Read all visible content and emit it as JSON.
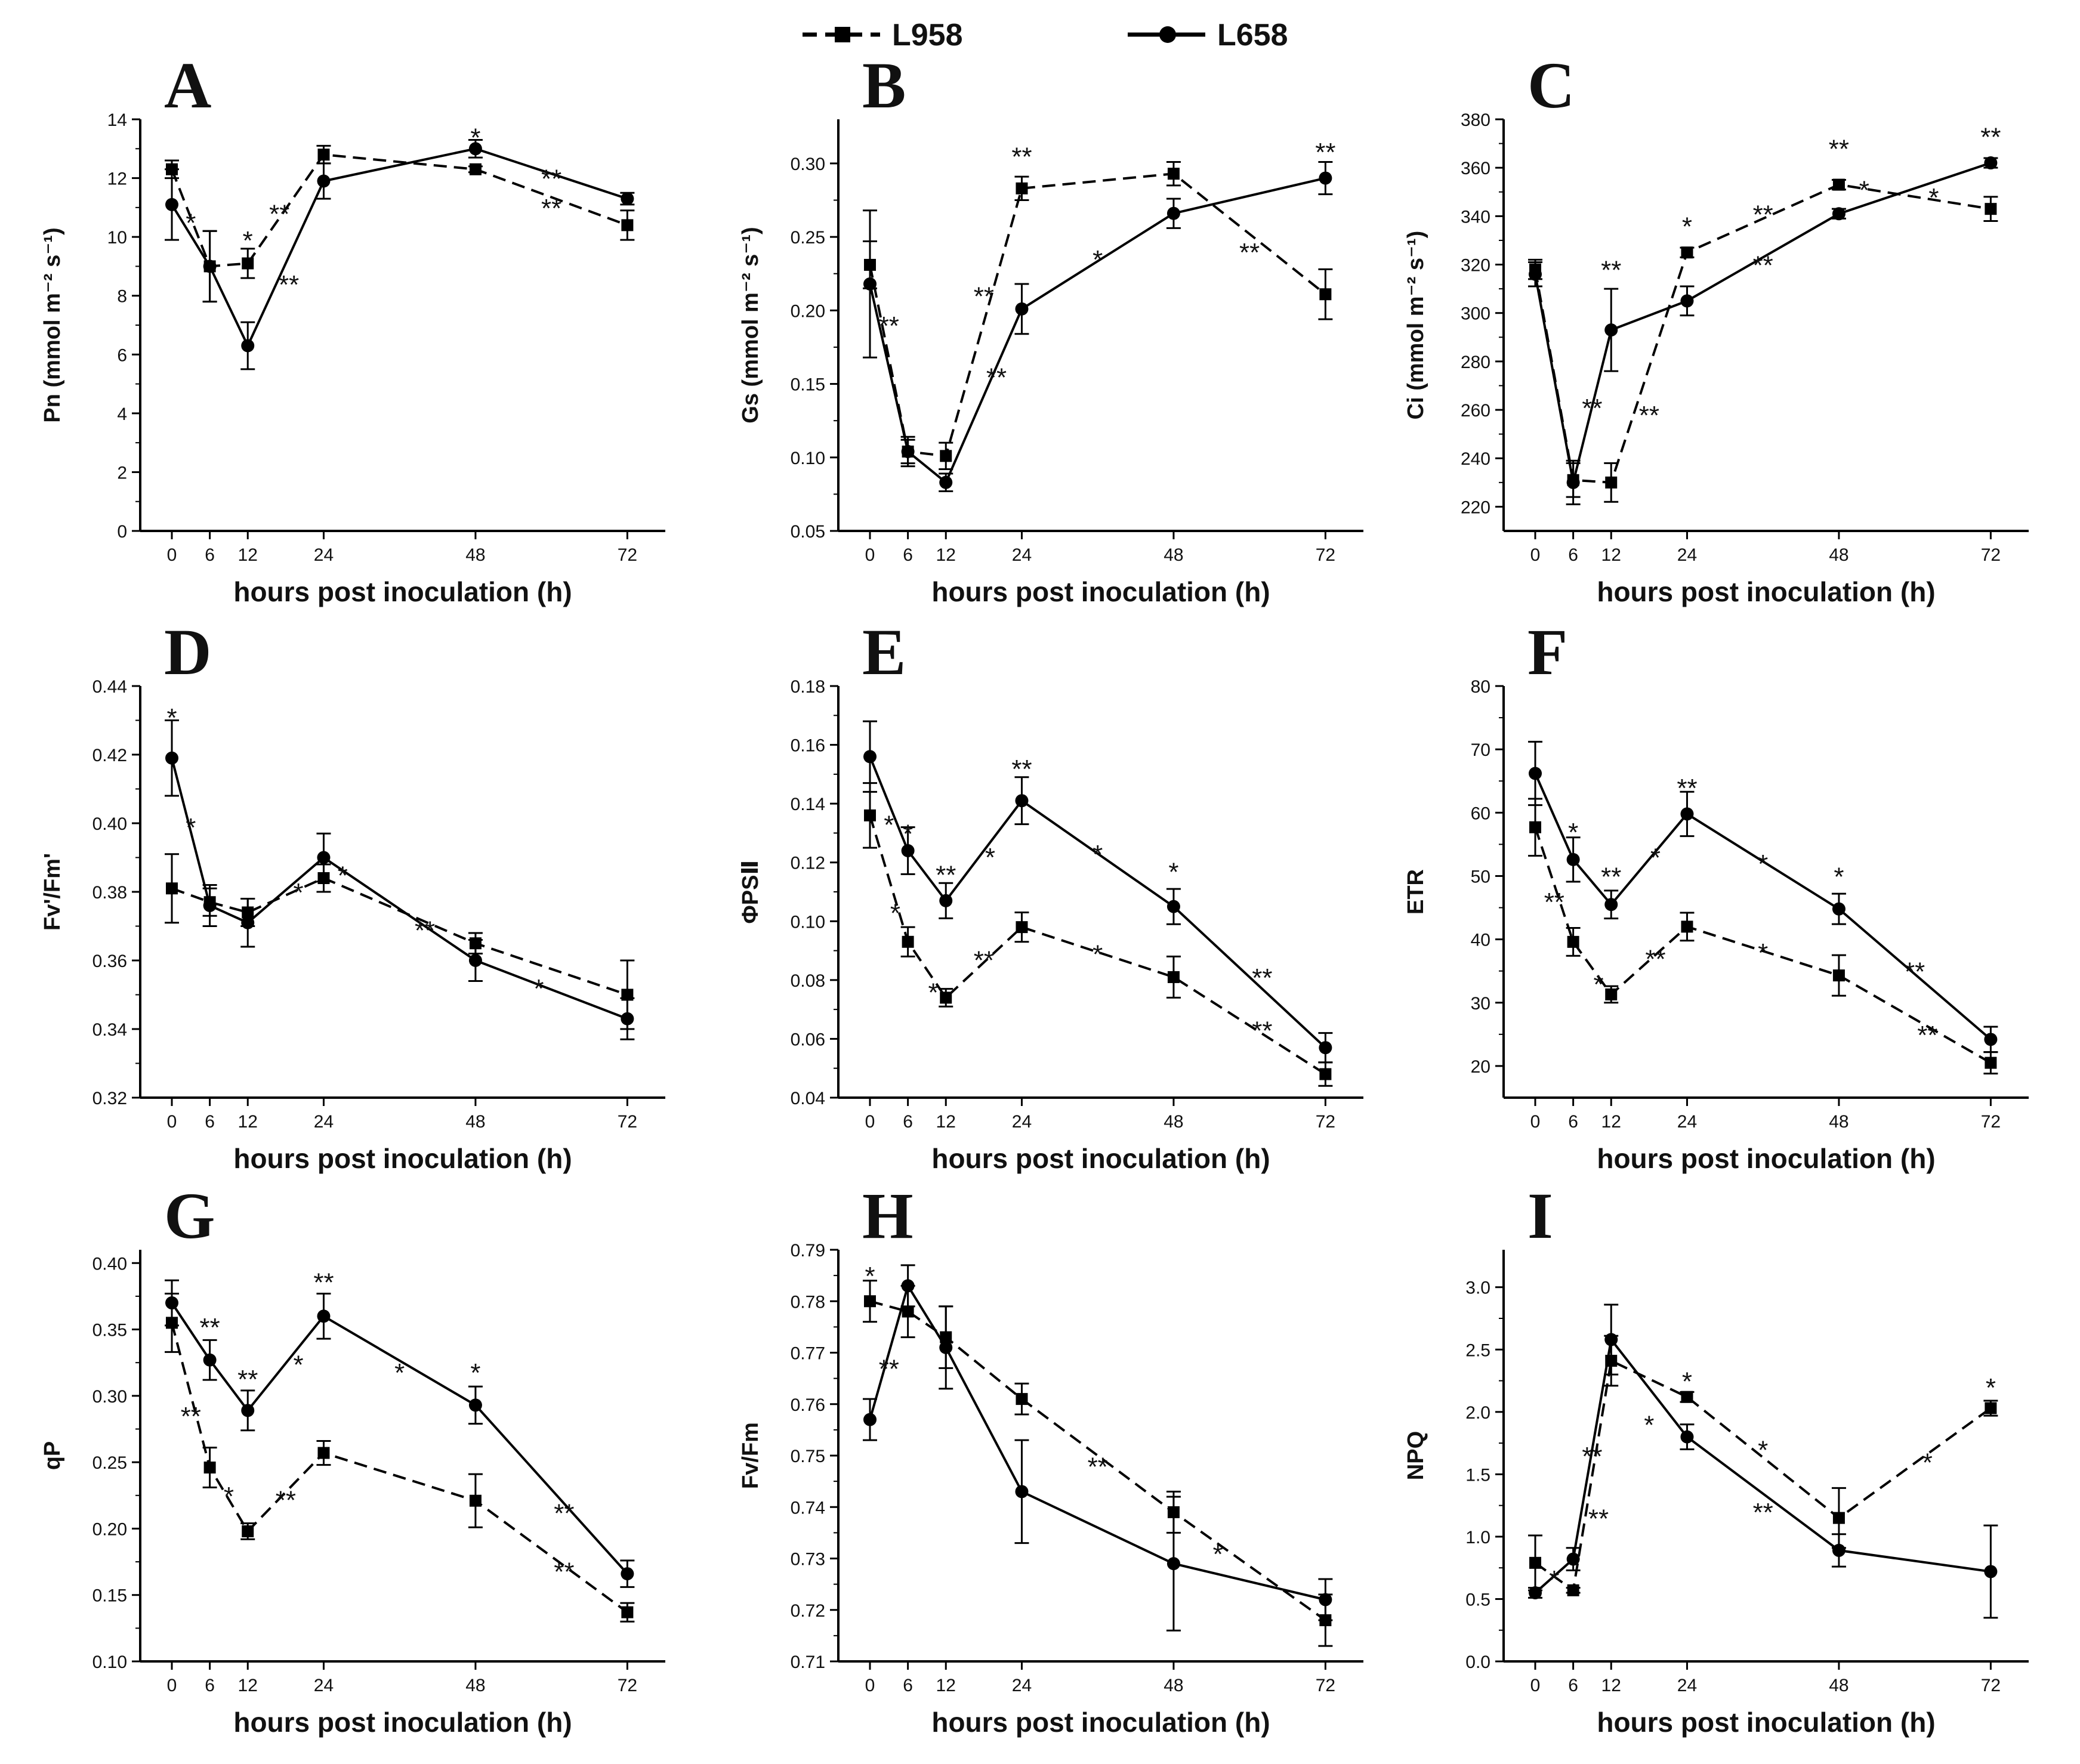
{
  "legend": [
    {
      "name": "L958",
      "style": "dashed",
      "marker": "square"
    },
    {
      "name": "L658",
      "style": "solid",
      "marker": "circle"
    }
  ],
  "chart_data": [
    {
      "type": "line",
      "panel": "A",
      "xlabel": "hours post  inoculation (h)",
      "ylabel": "Pn (mmol m⁻² s⁻¹)",
      "x": [
        0,
        6,
        12,
        24,
        48,
        72
      ],
      "xticks": [
        "0",
        "6",
        "12",
        "24",
        "48",
        "72"
      ],
      "ylim": [
        0,
        14
      ],
      "yticks": [
        "0",
        "2",
        "4",
        "6",
        "8",
        "10",
        "12",
        "14"
      ],
      "series": [
        {
          "name": "L958",
          "values": [
            12.3,
            9.0,
            9.1,
            12.8,
            12.3,
            10.4
          ],
          "errors": [
            0.3,
            1.2,
            0.5,
            0.3,
            0.1,
            0.5
          ]
        },
        {
          "name": "L658",
          "values": [
            11.1,
            9.0,
            6.3,
            11.9,
            13.0,
            11.3
          ],
          "errors": [
            1.2,
            1.2,
            0.8,
            0.6,
            0.3,
            0.2
          ]
        }
      ],
      "annotations": [
        {
          "text": "*",
          "x": 3,
          "y": 10.5
        },
        {
          "text": "*",
          "x": 12,
          "y": 9.9
        },
        {
          "text": "**",
          "x": 17,
          "y": 10.8
        },
        {
          "text": "**",
          "x": 18.5,
          "y": 8.4
        },
        {
          "text": "*",
          "x": 48,
          "y": 13.4
        },
        {
          "text": "**",
          "x": 60,
          "y": 12.0
        },
        {
          "text": "**",
          "x": 60,
          "y": 11.0
        }
      ]
    },
    {
      "type": "line",
      "panel": "B",
      "xlabel": "hours post  inoculation (h)",
      "ylabel": "Gs (mmol m⁻² s⁻¹)",
      "x": [
        0,
        6,
        12,
        24,
        48,
        72
      ],
      "xticks": [
        "0",
        "6",
        "12",
        "24",
        "48",
        "72"
      ],
      "ylim": [
        0.05,
        0.33
      ],
      "yticks": [
        "0.05",
        "0.10",
        "0.15",
        "0.20",
        "0.25",
        "0.30"
      ],
      "series": [
        {
          "name": "L958",
          "values": [
            0.231,
            0.104,
            0.101,
            0.283,
            0.293,
            0.211
          ],
          "errors": [
            0.016,
            0.008,
            0.009,
            0.008,
            0.008,
            0.017
          ]
        },
        {
          "name": "L658",
          "values": [
            0.218,
            0.104,
            0.083,
            0.201,
            0.266,
            0.29
          ],
          "errors": [
            0.05,
            0.01,
            0.006,
            0.017,
            0.01,
            0.011
          ]
        }
      ],
      "annotations": [
        {
          "text": "**",
          "x": 3,
          "y": 0.19
        },
        {
          "text": "**",
          "x": 24,
          "y": 0.305
        },
        {
          "text": "**",
          "x": 72,
          "y": 0.308
        },
        {
          "text": "**",
          "x": 18,
          "y": 0.21
        },
        {
          "text": "**",
          "x": 20,
          "y": 0.155
        },
        {
          "text": "*",
          "x": 36,
          "y": 0.235
        },
        {
          "text": "**",
          "x": 60,
          "y": 0.24
        }
      ]
    },
    {
      "type": "line",
      "panel": "C",
      "xlabel": "hours post  inoculation (h)",
      "ylabel": "Ci (mmol m⁻² s⁻¹)",
      "x": [
        0,
        6,
        12,
        24,
        48,
        72
      ],
      "xticks": [
        "0",
        "6",
        "12",
        "24",
        "48",
        "72"
      ],
      "ylim": [
        210,
        380
      ],
      "yticks": [
        "220",
        "240",
        "260",
        "280",
        "300",
        "320",
        "340",
        "360",
        "380"
      ],
      "series": [
        {
          "name": "L958",
          "values": [
            318,
            231,
            230,
            325,
            353,
            343
          ],
          "errors": [
            4,
            7,
            8,
            2,
            2,
            5
          ]
        },
        {
          "name": "L658",
          "values": [
            316,
            230,
            293,
            305,
            341,
            362
          ],
          "errors": [
            5,
            9,
            17,
            6,
            2,
            2
          ]
        }
      ],
      "annotations": [
        {
          "text": "*",
          "x": 24,
          "y": 336
        },
        {
          "text": "**",
          "x": 12,
          "y": 318
        },
        {
          "text": "**",
          "x": 48,
          "y": 368
        },
        {
          "text": "**",
          "x": 72,
          "y": 373
        },
        {
          "text": "**",
          "x": 9,
          "y": 261
        },
        {
          "text": "**",
          "x": 18,
          "y": 258
        },
        {
          "text": "**",
          "x": 36,
          "y": 341
        },
        {
          "text": "**",
          "x": 36,
          "y": 320
        },
        {
          "text": "*",
          "x": 52,
          "y": 351
        },
        {
          "text": "*",
          "x": 63,
          "y": 348
        }
      ]
    },
    {
      "type": "line",
      "panel": "D",
      "xlabel": "hours post  inoculation (h)",
      "ylabel": "Fv'/Fm'",
      "x": [
        0,
        6,
        12,
        24,
        48,
        72
      ],
      "xticks": [
        "0",
        "6",
        "12",
        "24",
        "48",
        "72"
      ],
      "ylim": [
        0.32,
        0.44
      ],
      "yticks": [
        "0.32",
        "0.34",
        "0.36",
        "0.38",
        "0.40",
        "0.42",
        "0.44"
      ],
      "series": [
        {
          "name": "L958",
          "values": [
            0.381,
            0.377,
            0.374,
            0.384,
            0.365,
            0.35
          ],
          "errors": [
            0.01,
            0.004,
            0.004,
            0.004,
            0.003,
            0.01
          ]
        },
        {
          "name": "L658",
          "values": [
            0.419,
            0.376,
            0.371,
            0.39,
            0.36,
            0.343
          ],
          "errors": [
            0.011,
            0.006,
            0.007,
            0.007,
            0.006,
            0.006
          ]
        }
      ],
      "annotations": [
        {
          "text": "*",
          "x": 0,
          "y": 0.431
        },
        {
          "text": "*",
          "x": 3,
          "y": 0.399
        },
        {
          "text": "*",
          "x": 20,
          "y": 0.38
        },
        {
          "text": "*",
          "x": 27,
          "y": 0.385
        },
        {
          "text": "**",
          "x": 40,
          "y": 0.369
        },
        {
          "text": "*",
          "x": 58,
          "y": 0.352
        }
      ]
    },
    {
      "type": "line",
      "panel": "E",
      "xlabel": "hours post  inoculation (h)",
      "ylabel": "ΦPSⅡ",
      "x": [
        0,
        6,
        12,
        24,
        48,
        72
      ],
      "xticks": [
        "0",
        "6",
        "12",
        "24",
        "48",
        "72"
      ],
      "ylim": [
        0.04,
        0.18
      ],
      "yticks": [
        "0.04",
        "0.06",
        "0.08",
        "0.10",
        "0.12",
        "0.14",
        "0.16",
        "0.18"
      ],
      "series": [
        {
          "name": "L958",
          "values": [
            0.136,
            0.093,
            0.074,
            0.098,
            0.081,
            0.048
          ],
          "errors": [
            0.011,
            0.005,
            0.003,
            0.005,
            0.007,
            0.004
          ]
        },
        {
          "name": "L658",
          "values": [
            0.156,
            0.124,
            0.107,
            0.141,
            0.105,
            0.057
          ],
          "errors": [
            0.012,
            0.008,
            0.006,
            0.008,
            0.006,
            0.005
          ]
        }
      ],
      "annotations": [
        {
          "text": "*",
          "x": 3,
          "y": 0.133
        },
        {
          "text": "*",
          "x": 6,
          "y": 0.13
        },
        {
          "text": "**",
          "x": 12,
          "y": 0.116
        },
        {
          "text": "**",
          "x": 24,
          "y": 0.152
        },
        {
          "text": "*",
          "x": 4,
          "y": 0.103
        },
        {
          "text": "*",
          "x": 10,
          "y": 0.076
        },
        {
          "text": "**",
          "x": 18,
          "y": 0.087
        },
        {
          "text": "*",
          "x": 19,
          "y": 0.122
        },
        {
          "text": "*",
          "x": 36,
          "y": 0.123
        },
        {
          "text": "*",
          "x": 36,
          "y": 0.089
        },
        {
          "text": "*",
          "x": 48,
          "y": 0.117
        },
        {
          "text": "**",
          "x": 62,
          "y": 0.081
        },
        {
          "text": "**",
          "x": 62,
          "y": 0.063
        }
      ]
    },
    {
      "type": "line",
      "panel": "F",
      "xlabel": "hours post  inoculation (h)",
      "ylabel": "ETR",
      "x": [
        0,
        6,
        12,
        24,
        48,
        72
      ],
      "xticks": [
        "0",
        "6",
        "12",
        "24",
        "48",
        "72"
      ],
      "ylim": [
        15,
        80
      ],
      "yticks": [
        "20",
        "30",
        "40",
        "50",
        "60",
        "70",
        "80"
      ],
      "series": [
        {
          "name": "L958",
          "values": [
            57.7,
            39.6,
            31.3,
            42.0,
            34.3,
            20.5
          ],
          "errors": [
            4.5,
            2.2,
            1.3,
            2.2,
            3.2,
            1.7
          ]
        },
        {
          "name": "L658",
          "values": [
            66.2,
            52.6,
            45.5,
            59.8,
            44.8,
            24.2
          ],
          "errors": [
            5.0,
            3.5,
            2.2,
            3.5,
            2.4,
            2.0
          ]
        }
      ],
      "annotations": [
        {
          "text": "**",
          "x": 3,
          "y": 46
        },
        {
          "text": "*",
          "x": 6,
          "y": 57
        },
        {
          "text": "**",
          "x": 12,
          "y": 50
        },
        {
          "text": "**",
          "x": 24,
          "y": 64
        },
        {
          "text": "*",
          "x": 10,
          "y": 33
        },
        {
          "text": "**",
          "x": 19,
          "y": 37
        },
        {
          "text": "*",
          "x": 19,
          "y": 53
        },
        {
          "text": "*",
          "x": 36,
          "y": 52
        },
        {
          "text": "*",
          "x": 36,
          "y": 38
        },
        {
          "text": "*",
          "x": 48,
          "y": 50
        },
        {
          "text": "**",
          "x": 60,
          "y": 35
        },
        {
          "text": "**",
          "x": 62,
          "y": 25
        }
      ]
    },
    {
      "type": "line",
      "panel": "G",
      "xlabel": "hours post  inoculation (h)",
      "ylabel": "qP",
      "x": [
        0,
        6,
        12,
        24,
        48,
        72
      ],
      "xticks": [
        "0",
        "6",
        "12",
        "24",
        "48",
        "72"
      ],
      "ylim": [
        0.1,
        0.41
      ],
      "yticks": [
        "0.10",
        "0.15",
        "0.20",
        "0.25",
        "0.30",
        "0.35",
        "0.40"
      ],
      "series": [
        {
          "name": "L958",
          "values": [
            0.355,
            0.246,
            0.198,
            0.257,
            0.221,
            0.137
          ],
          "errors": [
            0.022,
            0.015,
            0.006,
            0.009,
            0.02,
            0.007
          ]
        },
        {
          "name": "L658",
          "values": [
            0.37,
            0.327,
            0.289,
            0.36,
            0.293,
            0.166
          ],
          "errors": [
            0.017,
            0.015,
            0.015,
            0.017,
            0.014,
            0.01
          ]
        }
      ],
      "annotations": [
        {
          "text": "**",
          "x": 6,
          "y": 0.352
        },
        {
          "text": "**",
          "x": 12,
          "y": 0.313
        },
        {
          "text": "**",
          "x": 24,
          "y": 0.386
        },
        {
          "text": "**",
          "x": 3,
          "y": 0.285
        },
        {
          "text": "*",
          "x": 9,
          "y": 0.225
        },
        {
          "text": "*",
          "x": 20,
          "y": 0.324
        },
        {
          "text": "**",
          "x": 18,
          "y": 0.222
        },
        {
          "text": "*",
          "x": 36,
          "y": 0.318
        },
        {
          "text": "*",
          "x": 48,
          "y": 0.318
        },
        {
          "text": "**",
          "x": 62,
          "y": 0.212
        },
        {
          "text": "**",
          "x": 62,
          "y": 0.168
        }
      ]
    },
    {
      "type": "line",
      "panel": "H",
      "xlabel": "hours post  inoculation (h)",
      "ylabel": "Fv/Fm",
      "x": [
        0,
        6,
        12,
        24,
        48,
        72
      ],
      "xticks": [
        "0",
        "6",
        "12",
        "24",
        "48",
        "72"
      ],
      "ylim": [
        0.71,
        0.79
      ],
      "yticks": [
        "0.71",
        "0.72",
        "0.73",
        "0.74",
        "0.75",
        "0.76",
        "0.77",
        "0.78",
        "0.79"
      ],
      "series": [
        {
          "name": "L958",
          "values": [
            0.78,
            0.778,
            0.773,
            0.761,
            0.739,
            0.718
          ],
          "errors": [
            0.004,
            0.005,
            0.006,
            0.003,
            0.004,
            0.005
          ]
        },
        {
          "name": "L658",
          "values": [
            0.757,
            0.783,
            0.771,
            0.743,
            0.729,
            0.722
          ],
          "errors": [
            0.004,
            0.004,
            0.008,
            0.01,
            0.013,
            0.004
          ]
        }
      ],
      "annotations": [
        {
          "text": "*",
          "x": 0,
          "y": 0.785
        },
        {
          "text": "**",
          "x": 3,
          "y": 0.767
        },
        {
          "text": "**",
          "x": 36,
          "y": 0.748
        },
        {
          "text": "*",
          "x": 55,
          "y": 0.731
        }
      ]
    },
    {
      "type": "line",
      "panel": "I",
      "xlabel": "hours post  inoculation (h)",
      "ylabel": "NPQ",
      "x": [
        0,
        6,
        12,
        24,
        48,
        72
      ],
      "xticks": [
        "0",
        "6",
        "12",
        "24",
        "48",
        "72"
      ],
      "ylim": [
        0.0,
        3.3
      ],
      "yticks": [
        "0.0",
        "0.5",
        "1.0",
        "1.5",
        "2.0",
        "2.5",
        "3.0"
      ],
      "series": [
        {
          "name": "L958",
          "values": [
            0.79,
            0.57,
            2.41,
            2.12,
            1.15,
            2.03
          ],
          "errors": [
            0.22,
            0.02,
            0.2,
            0.04,
            0.24,
            0.06
          ]
        },
        {
          "name": "L658",
          "values": [
            0.55,
            0.82,
            2.58,
            1.8,
            0.89,
            0.72
          ],
          "errors": [
            0.04,
            0.09,
            0.28,
            0.1,
            0.13,
            0.37
          ]
        }
      ],
      "annotations": [
        {
          "text": "*",
          "x": 3,
          "y": 0.66
        },
        {
          "text": "**",
          "x": 9,
          "y": 1.65
        },
        {
          "text": "**",
          "x": 10,
          "y": 1.15
        },
        {
          "text": "*",
          "x": 24,
          "y": 2.25
        },
        {
          "text": "*",
          "x": 18,
          "y": 1.9
        },
        {
          "text": "*",
          "x": 36,
          "y": 1.7
        },
        {
          "text": "**",
          "x": 36,
          "y": 1.2
        },
        {
          "text": "*",
          "x": 62,
          "y": 1.6
        },
        {
          "text": "*",
          "x": 72,
          "y": 2.2
        }
      ]
    }
  ]
}
